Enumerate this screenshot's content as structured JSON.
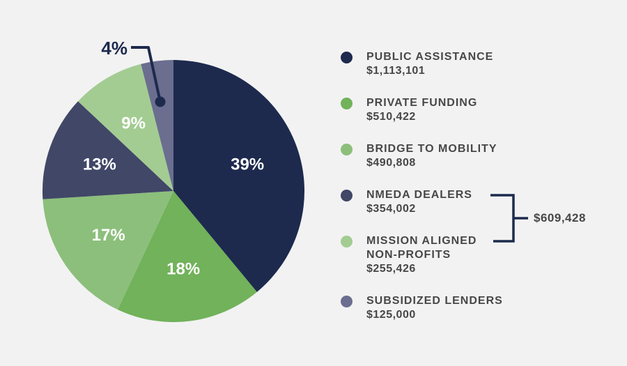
{
  "colors": {
    "background": "#f2f2f2",
    "text": "#474747",
    "accent_navy": "#1d2a4e",
    "label_on_slice": "#ffffff"
  },
  "chart_data": {
    "type": "pie",
    "title": "",
    "legend_position": "right",
    "start_angle_deg": 0,
    "direction": "clockwise",
    "slices": [
      {
        "name": "PUBLIC ASSISTANCE",
        "amount": "$1,113,101",
        "pct": 39,
        "pct_label": "39%",
        "color": "#1d2a4e"
      },
      {
        "name": "PRIVATE FUNDING",
        "amount": "$510,422",
        "pct": 18,
        "pct_label": "18%",
        "color": "#71b25a"
      },
      {
        "name": "BRIDGE TO MOBILITY",
        "amount": "$490,808",
        "pct": 17,
        "pct_label": "17%",
        "color": "#8cbf7b"
      },
      {
        "name": "NMEDA DEALERS",
        "amount": "$354,002",
        "pct": 13,
        "pct_label": "13%",
        "color": "#414767"
      },
      {
        "name": "MISSION ALIGNED\nNON-PROFITS",
        "amount": "$255,426",
        "pct": 9,
        "pct_label": "9%",
        "color": "#a3cc92"
      },
      {
        "name": "SUBSIDIZED LENDERS",
        "amount": "$125,000",
        "pct": 4,
        "pct_label": "4%",
        "color": "#6b6e8f",
        "external_label": true
      }
    ],
    "bracket": {
      "joins": [
        "NMEDA DEALERS",
        "MISSION ALIGNED NON-PROFITS"
      ],
      "total": "$609,428"
    }
  }
}
